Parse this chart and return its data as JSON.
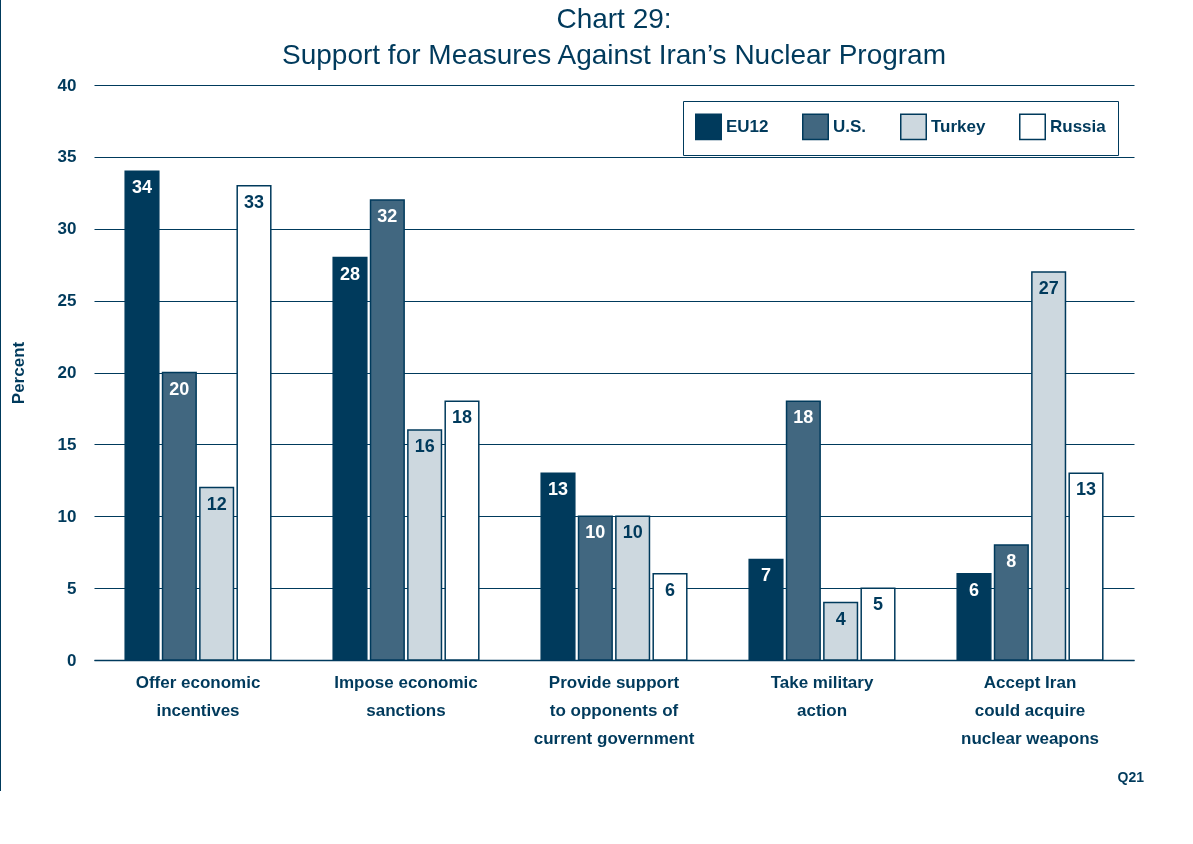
{
  "chart_data": {
    "type": "bar",
    "title": "Chart 29:",
    "subtitle": "Support for Measures Against Iran’s Nuclear Program",
    "ylabel": "Percent",
    "categories": [
      "Offer economic\nincentives",
      "Impose economic\nsanctions",
      "Provide support\nto opponents of\ncurrent government",
      "Take military\naction",
      "Accept Iran\ncould acquire\nnuclear weapons"
    ],
    "series": [
      {
        "name": "EU12",
        "color": "#003a5c",
        "values": [
          34,
          28,
          13,
          7,
          6
        ]
      },
      {
        "name": "U.S.",
        "color": "#416780",
        "values": [
          20,
          32,
          10,
          18,
          8
        ]
      },
      {
        "name": "Turkey",
        "color": "#cdd8df",
        "values": [
          12,
          16,
          10,
          4,
          27
        ]
      },
      {
        "name": "Russia",
        "color": "#ffffff",
        "values": [
          33,
          18,
          6,
          5,
          13
        ]
      }
    ],
    "ylim": [
      0,
      40
    ],
    "yticks": [
      0,
      5,
      10,
      15,
      20,
      25,
      30,
      35,
      40
    ],
    "grid": "y",
    "legend": "top right",
    "data_labels": true,
    "annotations": [
      "Q21"
    ]
  }
}
